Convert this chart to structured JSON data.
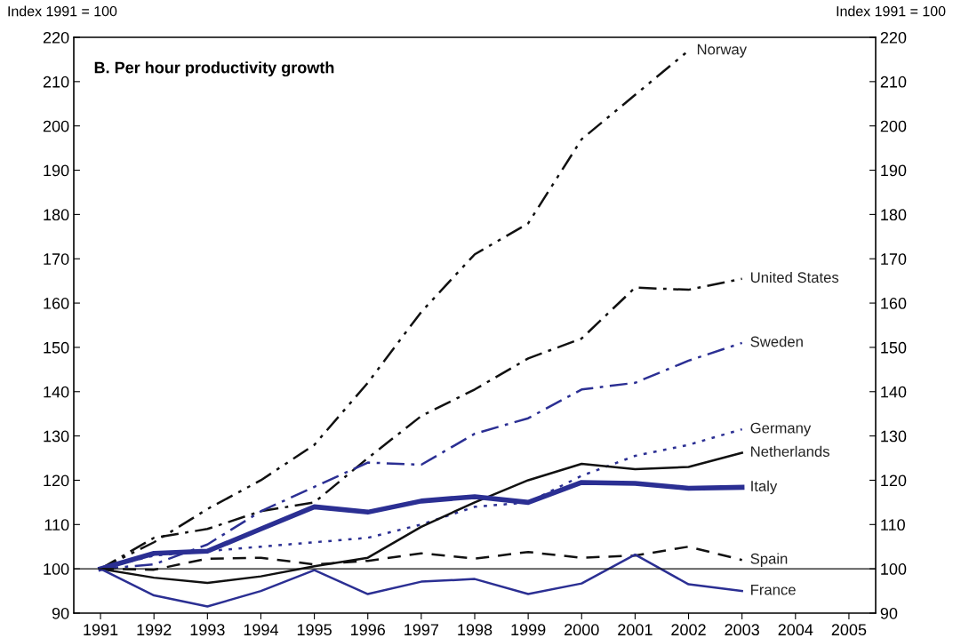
{
  "chart_data": {
    "type": "line",
    "title": "B. Per hour productivity growth",
    "ylabel": "Index 1991 = 100",
    "y2label": "Index 1991 = 100",
    "x": [
      1991,
      1992,
      1993,
      1994,
      1995,
      1996,
      1997,
      1998,
      1999,
      2000,
      2001,
      2002,
      2003
    ],
    "xlim": [
      1990.5,
      2005.5
    ],
    "xticks": [
      1991,
      1992,
      1993,
      1994,
      1995,
      1996,
      1997,
      1998,
      1999,
      2000,
      2001,
      2002,
      2003,
      2004,
      2005
    ],
    "ylim": [
      90,
      220
    ],
    "yticks": [
      90,
      100,
      110,
      120,
      130,
      140,
      150,
      160,
      170,
      180,
      190,
      200,
      210,
      220
    ],
    "y2lim": [
      90,
      220
    ],
    "y2ticks": [
      90,
      100,
      110,
      120,
      130,
      140,
      150,
      160,
      170,
      180,
      190,
      200,
      210,
      220
    ],
    "grid": false,
    "marker": "none",
    "ref_lines": [
      {
        "axis": "y",
        "value": 100,
        "color": "#111111",
        "line_style": "solid"
      }
    ],
    "series": [
      {
        "name": "Norway",
        "color": "#111111",
        "line_style": "dashdotdot",
        "values": [
          100,
          106,
          113.5,
          120,
          128,
          142,
          158,
          171,
          178,
          197,
          207,
          217,
          null
        ]
      },
      {
        "name": "United States",
        "color": "#111111",
        "line_style": "dashdot",
        "values": [
          100,
          107,
          109,
          113,
          115,
          125,
          134.5,
          140.5,
          147.5,
          152,
          163.5,
          163,
          165.5
        ]
      },
      {
        "name": "Sweden",
        "color": "#2b2f93",
        "line_style": "dashdot",
        "values": [
          100,
          101,
          105.5,
          113,
          118.5,
          124,
          123.5,
          130.5,
          134,
          140.5,
          142,
          147,
          151
        ]
      },
      {
        "name": "Germany",
        "color": "#2b2f93",
        "line_style": "dotted",
        "values": [
          100,
          103,
          104,
          105,
          106,
          107,
          110,
          114,
          115,
          121,
          125.5,
          128,
          131.5
        ]
      },
      {
        "name": "Netherlands",
        "color": "#111111",
        "line_style": "solid",
        "values": [
          100,
          98,
          96.8,
          98.3,
          100.6,
          102.5,
          109.5,
          115,
          120,
          123.7,
          122.5,
          123,
          126.2
        ]
      },
      {
        "name": "Italy",
        "color": "#2b2f93",
        "line_style": "solid",
        "values": [
          100,
          103.5,
          104,
          109,
          114,
          112.8,
          115.3,
          116.3,
          115,
          119.5,
          119.3,
          118.2,
          118.4
        ]
      },
      {
        "name": "Spain",
        "color": "#111111",
        "line_style": "dashed",
        "values": [
          100,
          99.8,
          102.3,
          102.5,
          101,
          101.8,
          103.5,
          102.3,
          103.8,
          102.5,
          103,
          105,
          102
        ]
      },
      {
        "name": "France",
        "color": "#2b2f93",
        "line_style": "solid",
        "values": [
          100,
          94,
          91.5,
          95,
          99.7,
          94.3,
          97.1,
          97.7,
          94.3,
          96.7,
          103.2,
          96.5,
          95
        ]
      }
    ]
  }
}
